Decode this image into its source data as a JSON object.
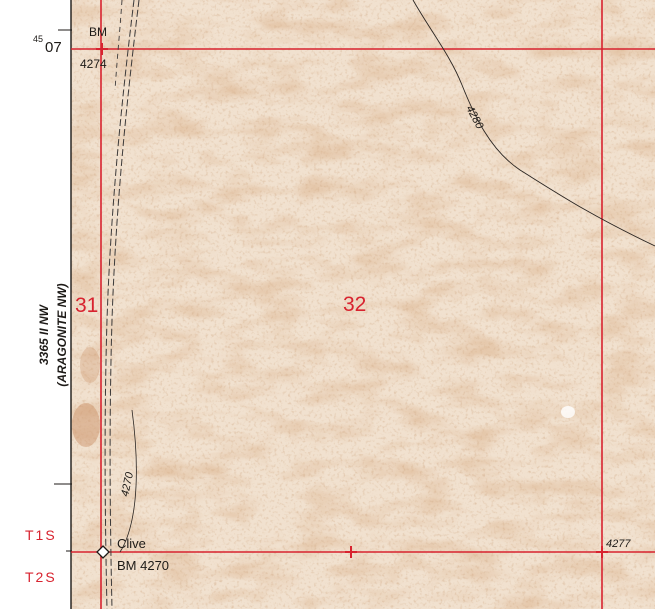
{
  "map": {
    "sections": [
      {
        "id": "section-31",
        "label": "31"
      },
      {
        "id": "section-32",
        "label": "32"
      }
    ],
    "benchmarks": [
      {
        "prefix": "BM",
        "elevation": "4274"
      },
      {
        "prefix": "Clive",
        "elevation": "BM 4270"
      }
    ],
    "northing_label": {
      "superscript": "45",
      "main": "07"
    },
    "contours": [
      {
        "label": "4280"
      },
      {
        "label": "4270"
      }
    ],
    "spot_elevation": "4277",
    "townships": [
      "T1S",
      "T2S"
    ],
    "adjoining_sheet": {
      "line1": "3365 II NW",
      "line2": "(ARAGONITE NW)"
    },
    "colors": {
      "paper": "#f1e1cf",
      "stain": "#c98e63",
      "grid_red": "#d8232f",
      "ink": "#1d1a17"
    }
  }
}
